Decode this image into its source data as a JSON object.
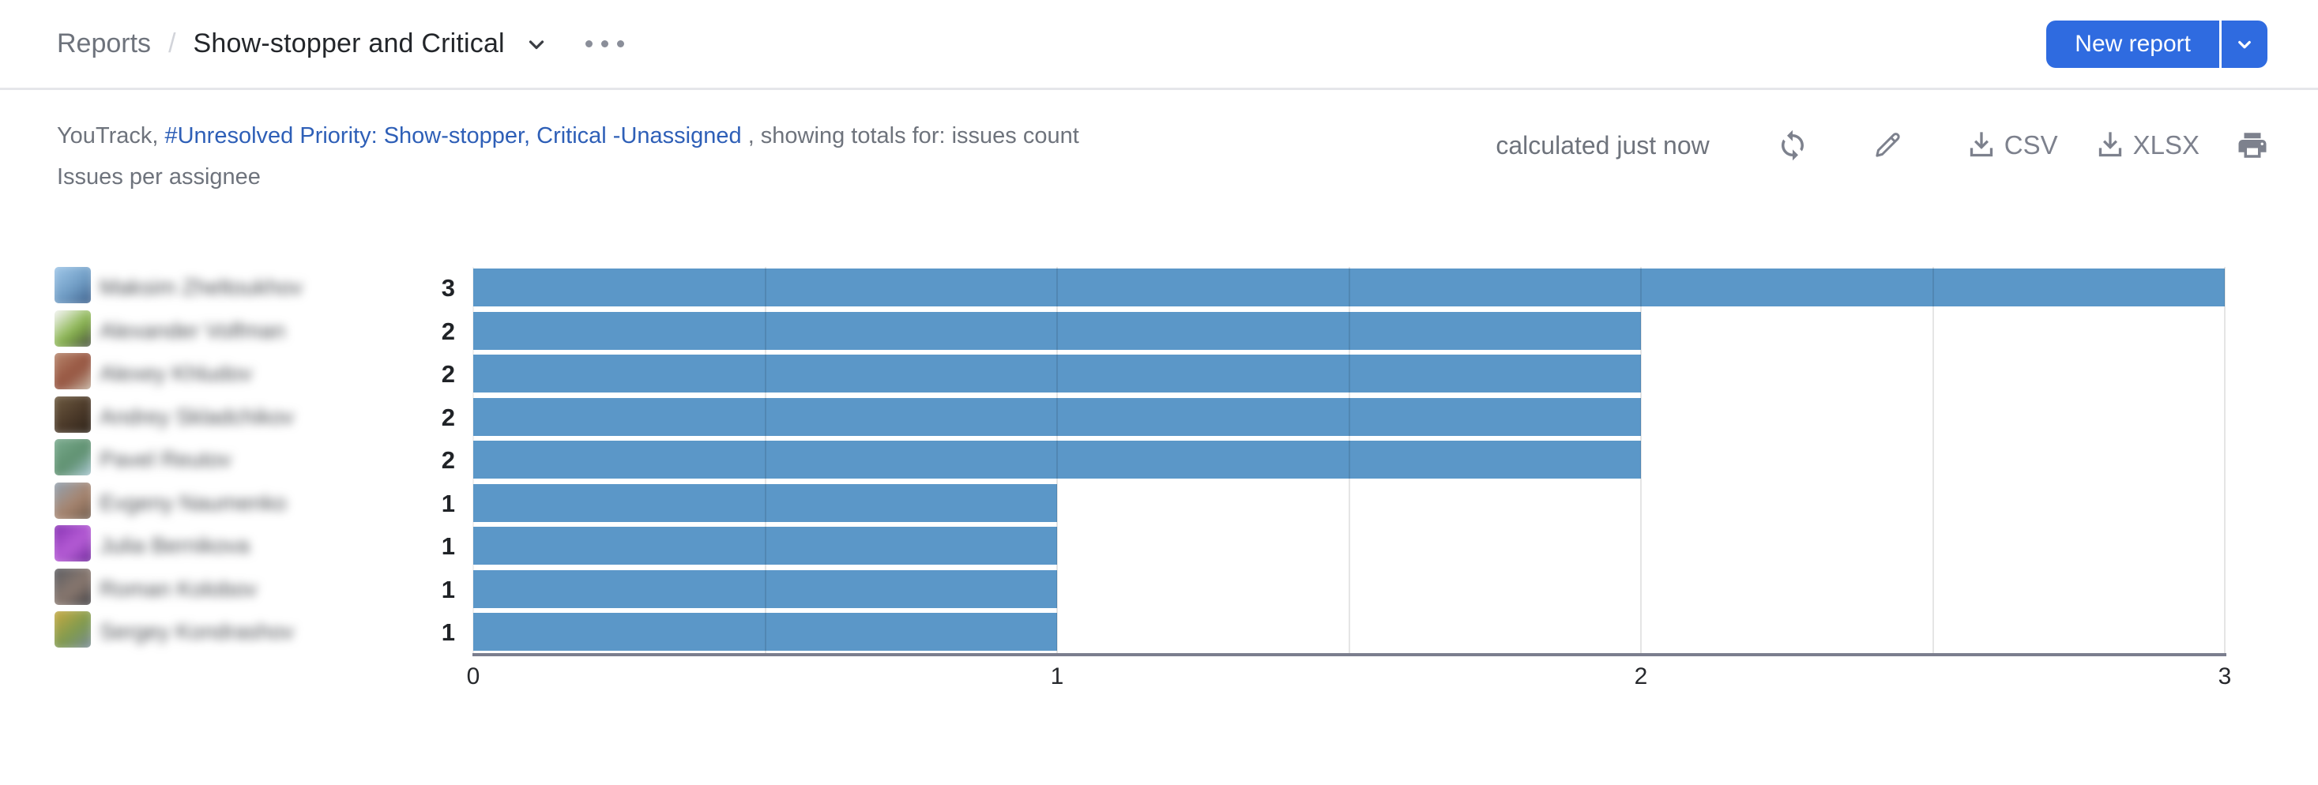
{
  "breadcrumb": {
    "root": "Reports",
    "current": "Show-stopper and Critical"
  },
  "header": {
    "new_report_label": "New report"
  },
  "subtitle": {
    "prefix": "YouTrack,",
    "query_link": "#Unresolved Priority: Show-stopper, Critical -Unassigned",
    "suffix": ", showing totals for: issues count",
    "line2": "Issues per assignee"
  },
  "toolbar": {
    "calculated": "calculated just now",
    "csv_label": "CSV",
    "xlsx_label": "XLSX"
  },
  "icons": [
    "refresh-icon",
    "edit-pencil-icon",
    "download-icon",
    "printer-icon",
    "chevron-down-icon",
    "ellipsis-menu-icon"
  ],
  "colors": {
    "accent_button": "#2f6be0",
    "link": "#2e5fb7",
    "bar": "#5b97c8",
    "muted_text": "#6e737c",
    "icon_gray": "#7d818d",
    "axis": "#7b7e8e"
  },
  "chart_data": {
    "type": "bar",
    "orientation": "horizontal",
    "title": "Issues per assignee",
    "categories": [
      "Maksim Zheltoukhov",
      "Alexander Volfman",
      "Alexey Khludov",
      "Andrey Skladchikov",
      "Pavel Reutov",
      "Evgeny Naumenko",
      "Julia Bernikova",
      "Roman Kolobov",
      "Sergey Kondrashov"
    ],
    "values": [
      3,
      2,
      2,
      2,
      2,
      1,
      1,
      1,
      1
    ],
    "xlabel": "",
    "ylabel": "",
    "xlim": [
      0,
      3
    ],
    "x_ticks": [
      0,
      1,
      2,
      3
    ],
    "gridline_step": 0.5,
    "grid": true,
    "legend": false,
    "bar_color": "#5b97c8",
    "names_blurred": true,
    "avatar_gradients": [
      [
        "#9cc4e6",
        "#6f9cc4",
        "#3d5f8a"
      ],
      [
        "#f2f3f1",
        "#86b349",
        "#4a4f45"
      ],
      [
        "#b5836a",
        "#93503c",
        "#c7b8a6"
      ],
      [
        "#6b583f",
        "#4a3828",
        "#2e241a"
      ],
      [
        "#78a98c",
        "#5d8f6e",
        "#aecbd8"
      ],
      [
        "#93a0ad",
        "#a8846d",
        "#6d5a4c"
      ],
      [
        "#8a35b5",
        "#b95fd8",
        "#6a2596"
      ],
      [
        "#5d5d61",
        "#8c7a70",
        "#3f3f44"
      ],
      [
        "#c2a843",
        "#7d9a4e",
        "#7a8a9c"
      ]
    ]
  }
}
